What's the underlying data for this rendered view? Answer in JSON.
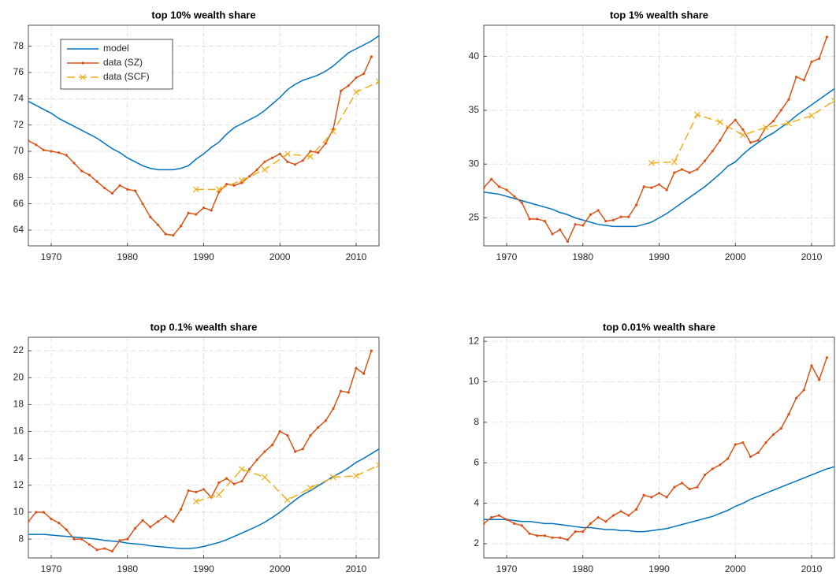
{
  "chart_data": [
    {
      "type": "line",
      "title": "top 10% wealth share",
      "xlim": [
        1967,
        2013
      ],
      "xticks": [
        1970,
        1980,
        1990,
        2000,
        2010
      ],
      "ylim": [
        62.8,
        79.6
      ],
      "yticks": [
        64,
        66,
        68,
        70,
        72,
        74,
        76,
        78
      ],
      "grid": true,
      "legend": "northwest",
      "series": [
        {
          "name": "model",
          "color": "#0072BD",
          "linestyle": "solid",
          "marker": "none",
          "x": [
            1967,
            1968,
            1969,
            1970,
            1971,
            1972,
            1973,
            1974,
            1975,
            1976,
            1977,
            1978,
            1979,
            1980,
            1981,
            1982,
            1983,
            1984,
            1985,
            1986,
            1987,
            1988,
            1989,
            1990,
            1991,
            1992,
            1993,
            1994,
            1995,
            1996,
            1997,
            1998,
            1999,
            2000,
            2001,
            2002,
            2003,
            2004,
            2005,
            2006,
            2007,
            2008,
            2009,
            2010,
            2011,
            2012,
            2013
          ],
          "values": [
            73.8,
            73.5,
            73.2,
            72.9,
            72.5,
            72.2,
            71.9,
            71.6,
            71.3,
            71.0,
            70.6,
            70.2,
            69.9,
            69.5,
            69.2,
            68.9,
            68.7,
            68.6,
            68.6,
            68.6,
            68.7,
            68.9,
            69.4,
            69.8,
            70.3,
            70.7,
            71.3,
            71.8,
            72.1,
            72.4,
            72.7,
            73.1,
            73.6,
            74.1,
            74.7,
            75.1,
            75.4,
            75.6,
            75.8,
            76.1,
            76.5,
            77.0,
            77.5,
            77.8,
            78.1,
            78.4,
            78.8
          ]
        },
        {
          "name": "data (SZ)",
          "color": "#D95319",
          "linestyle": "solid",
          "marker": "dot",
          "x": [
            1967,
            1968,
            1969,
            1970,
            1971,
            1972,
            1973,
            1974,
            1975,
            1976,
            1977,
            1978,
            1979,
            1980,
            1981,
            1982,
            1983,
            1984,
            1985,
            1986,
            1987,
            1988,
            1989,
            1990,
            1991,
            1992,
            1993,
            1994,
            1995,
            1996,
            1997,
            1998,
            1999,
            2000,
            2001,
            2002,
            2003,
            2004,
            2005,
            2006,
            2007,
            2008,
            2009,
            2010,
            2011,
            2012
          ],
          "values": [
            70.8,
            70.5,
            70.1,
            70.0,
            69.9,
            69.7,
            69.1,
            68.5,
            68.2,
            67.7,
            67.2,
            66.8,
            67.4,
            67.1,
            67.0,
            66.0,
            65.0,
            64.4,
            63.7,
            63.6,
            64.3,
            65.3,
            65.2,
            65.7,
            65.5,
            66.9,
            67.5,
            67.4,
            67.6,
            68.1,
            68.6,
            69.2,
            69.5,
            69.8,
            69.2,
            69.0,
            69.3,
            70.0,
            69.9,
            70.6,
            71.7,
            74.6,
            75.0,
            75.6,
            75.9,
            77.2
          ]
        },
        {
          "name": "data (SCF)",
          "color": "#EDB120",
          "linestyle": "dashed",
          "marker": "x",
          "x": [
            1989,
            1992,
            1995,
            1998,
            2001,
            2004,
            2007,
            2010,
            2013
          ],
          "values": [
            67.1,
            67.1,
            67.8,
            68.6,
            69.8,
            69.6,
            71.5,
            74.5,
            75.3
          ]
        }
      ]
    },
    {
      "type": "line",
      "title": "top 1% wealth share",
      "xlim": [
        1967,
        2013
      ],
      "xticks": [
        1970,
        1980,
        1990,
        2000,
        2010
      ],
      "ylim": [
        22.4,
        42.9
      ],
      "yticks": [
        25,
        30,
        35,
        40
      ],
      "grid": true,
      "series": [
        {
          "name": "model",
          "color": "#0072BD",
          "linestyle": "solid",
          "marker": "none",
          "x": [
            1967,
            1968,
            1969,
            1970,
            1971,
            1972,
            1973,
            1974,
            1975,
            1976,
            1977,
            1978,
            1979,
            1980,
            1981,
            1982,
            1983,
            1984,
            1985,
            1986,
            1987,
            1988,
            1989,
            1990,
            1991,
            1992,
            1993,
            1994,
            1995,
            1996,
            1997,
            1998,
            1999,
            2000,
            2001,
            2002,
            2003,
            2004,
            2005,
            2006,
            2007,
            2008,
            2009,
            2010,
            2011,
            2012,
            2013
          ],
          "values": [
            27.4,
            27.3,
            27.2,
            27.0,
            26.8,
            26.6,
            26.4,
            26.2,
            26.0,
            25.8,
            25.5,
            25.3,
            25.0,
            24.8,
            24.6,
            24.4,
            24.3,
            24.2,
            24.2,
            24.2,
            24.2,
            24.4,
            24.6,
            25.0,
            25.4,
            25.9,
            26.4,
            26.9,
            27.4,
            27.9,
            28.5,
            29.1,
            29.8,
            30.2,
            30.9,
            31.5,
            32.0,
            32.5,
            32.9,
            33.4,
            33.9,
            34.5,
            35.0,
            35.5,
            36.0,
            36.5,
            37.0
          ]
        },
        {
          "name": "data (SZ)",
          "color": "#D95319",
          "linestyle": "solid",
          "marker": "dot",
          "x": [
            1967,
            1968,
            1969,
            1970,
            1971,
            1972,
            1973,
            1974,
            1975,
            1976,
            1977,
            1978,
            1979,
            1980,
            1981,
            1982,
            1983,
            1984,
            1985,
            1986,
            1987,
            1988,
            1989,
            1990,
            1991,
            1992,
            1993,
            1994,
            1995,
            1996,
            1997,
            1998,
            1999,
            2000,
            2001,
            2002,
            2003,
            2004,
            2005,
            2006,
            2007,
            2008,
            2009,
            2010,
            2011,
            2012
          ],
          "values": [
            27.8,
            28.6,
            27.9,
            27.6,
            27.0,
            26.4,
            24.9,
            24.9,
            24.7,
            23.5,
            23.9,
            22.8,
            24.4,
            24.3,
            25.3,
            25.7,
            24.7,
            24.8,
            25.1,
            25.1,
            26.2,
            27.9,
            27.8,
            28.1,
            27.6,
            29.2,
            29.5,
            29.2,
            29.5,
            30.3,
            31.2,
            32.2,
            33.4,
            34.1,
            33.2,
            32.0,
            32.2,
            33.4,
            34.0,
            35.0,
            36.0,
            38.1,
            37.8,
            39.5,
            39.8,
            41.8
          ]
        },
        {
          "name": "data (SCF)",
          "color": "#EDB120",
          "linestyle": "dashed",
          "marker": "x",
          "x": [
            1989,
            1992,
            1995,
            1998,
            2001,
            2004,
            2007,
            2010,
            2013
          ],
          "values": [
            30.1,
            30.2,
            34.6,
            33.9,
            32.7,
            33.4,
            33.8,
            34.5,
            35.9
          ]
        }
      ]
    },
    {
      "type": "line",
      "title": "top 0.1% wealth share",
      "xlim": [
        1967,
        2013
      ],
      "xticks": [
        1970,
        1980,
        1990,
        2000,
        2010
      ],
      "ylim": [
        6.6,
        23.0
      ],
      "yticks": [
        8,
        10,
        12,
        14,
        16,
        18,
        20,
        22
      ],
      "grid": true,
      "series": [
        {
          "name": "model",
          "color": "#0072BD",
          "linestyle": "solid",
          "marker": "none",
          "x": [
            1967,
            1968,
            1969,
            1970,
            1971,
            1972,
            1973,
            1974,
            1975,
            1976,
            1977,
            1978,
            1979,
            1980,
            1981,
            1982,
            1983,
            1984,
            1985,
            1986,
            1987,
            1988,
            1989,
            1990,
            1991,
            1992,
            1993,
            1994,
            1995,
            1996,
            1997,
            1998,
            1999,
            2000,
            2001,
            2002,
            2003,
            2004,
            2005,
            2006,
            2007,
            2008,
            2009,
            2010,
            2011,
            2012,
            2013
          ],
          "values": [
            8.35,
            8.35,
            8.35,
            8.3,
            8.25,
            8.2,
            8.15,
            8.1,
            8.05,
            8.0,
            7.9,
            7.85,
            7.8,
            7.7,
            7.65,
            7.6,
            7.5,
            7.45,
            7.4,
            7.35,
            7.3,
            7.3,
            7.35,
            7.45,
            7.6,
            7.75,
            7.95,
            8.2,
            8.45,
            8.7,
            8.95,
            9.25,
            9.6,
            10.0,
            10.45,
            10.9,
            11.3,
            11.6,
            11.95,
            12.3,
            12.65,
            12.95,
            13.3,
            13.7,
            14.0,
            14.35,
            14.7
          ]
        },
        {
          "name": "data (SZ)",
          "color": "#D95319",
          "linestyle": "solid",
          "marker": "dot",
          "x": [
            1967,
            1968,
            1969,
            1970,
            1971,
            1972,
            1973,
            1974,
            1975,
            1976,
            1977,
            1978,
            1979,
            1980,
            1981,
            1982,
            1983,
            1984,
            1985,
            1986,
            1987,
            1988,
            1989,
            1990,
            1991,
            1992,
            1993,
            1994,
            1995,
            1996,
            1997,
            1998,
            1999,
            2000,
            2001,
            2002,
            2003,
            2004,
            2005,
            2006,
            2007,
            2008,
            2009,
            2010,
            2011,
            2012
          ],
          "values": [
            9.3,
            10.0,
            10.0,
            9.5,
            9.2,
            8.7,
            8.0,
            8.0,
            7.6,
            7.2,
            7.3,
            7.1,
            7.9,
            8.0,
            8.8,
            9.4,
            8.9,
            9.3,
            9.7,
            9.3,
            10.2,
            11.6,
            11.5,
            11.7,
            11.1,
            12.2,
            12.5,
            12.1,
            12.3,
            13.2,
            13.9,
            14.5,
            15.0,
            16.0,
            15.7,
            14.5,
            14.7,
            15.7,
            16.3,
            16.8,
            17.7,
            19.0,
            18.9,
            20.7,
            20.3,
            22.0
          ]
        },
        {
          "name": "data (SCF)",
          "color": "#EDB120",
          "linestyle": "dashed",
          "marker": "x",
          "x": [
            1989,
            1992,
            1995,
            1998,
            2001,
            2004,
            2007,
            2010,
            2013
          ],
          "values": [
            10.8,
            11.3,
            13.2,
            12.6,
            10.9,
            11.8,
            12.6,
            12.7,
            13.5
          ]
        }
      ]
    },
    {
      "type": "line",
      "title": "top 0.01% wealth share",
      "xlim": [
        1967,
        2013
      ],
      "xticks": [
        1970,
        1980,
        1990,
        2000,
        2010
      ],
      "ylim": [
        1.3,
        12.2
      ],
      "yticks": [
        2,
        4,
        6,
        8,
        10,
        12
      ],
      "grid": true,
      "series": [
        {
          "name": "model",
          "color": "#0072BD",
          "linestyle": "solid",
          "marker": "none",
          "x": [
            1967,
            1968,
            1969,
            1970,
            1971,
            1972,
            1973,
            1974,
            1975,
            1976,
            1977,
            1978,
            1979,
            1980,
            1981,
            1982,
            1983,
            1984,
            1985,
            1986,
            1987,
            1988,
            1989,
            1990,
            1991,
            1992,
            1993,
            1994,
            1995,
            1996,
            1997,
            1998,
            1999,
            2000,
            2001,
            2002,
            2003,
            2004,
            2005,
            2006,
            2007,
            2008,
            2009,
            2010,
            2011,
            2012,
            2013
          ],
          "values": [
            3.2,
            3.2,
            3.2,
            3.2,
            3.15,
            3.1,
            3.1,
            3.05,
            3.0,
            3.0,
            2.95,
            2.9,
            2.85,
            2.8,
            2.8,
            2.75,
            2.7,
            2.7,
            2.65,
            2.65,
            2.6,
            2.6,
            2.65,
            2.7,
            2.75,
            2.85,
            2.95,
            3.05,
            3.15,
            3.25,
            3.35,
            3.5,
            3.65,
            3.85,
            4.0,
            4.2,
            4.35,
            4.5,
            4.65,
            4.8,
            4.95,
            5.1,
            5.25,
            5.4,
            5.55,
            5.7,
            5.8
          ]
        },
        {
          "name": "data (SZ)",
          "color": "#D95319",
          "linestyle": "solid",
          "marker": "dot",
          "x": [
            1967,
            1968,
            1969,
            1970,
            1971,
            1972,
            1973,
            1974,
            1975,
            1976,
            1977,
            1978,
            1979,
            1980,
            1981,
            1982,
            1983,
            1984,
            1985,
            1986,
            1987,
            1988,
            1989,
            1990,
            1991,
            1992,
            1993,
            1994,
            1995,
            1996,
            1997,
            1998,
            1999,
            2000,
            2001,
            2002,
            2003,
            2004,
            2005,
            2006,
            2007,
            2008,
            2009,
            2010,
            2011,
            2012
          ],
          "values": [
            3.0,
            3.3,
            3.4,
            3.2,
            3.0,
            2.9,
            2.5,
            2.4,
            2.4,
            2.3,
            2.3,
            2.2,
            2.6,
            2.6,
            3.0,
            3.3,
            3.1,
            3.4,
            3.6,
            3.4,
            3.7,
            4.4,
            4.3,
            4.5,
            4.3,
            4.8,
            5.0,
            4.7,
            4.8,
            5.4,
            5.7,
            5.9,
            6.2,
            6.9,
            7.0,
            6.3,
            6.5,
            7.0,
            7.4,
            7.7,
            8.4,
            9.2,
            9.6,
            10.8,
            10.1,
            11.2
          ]
        }
      ]
    }
  ]
}
